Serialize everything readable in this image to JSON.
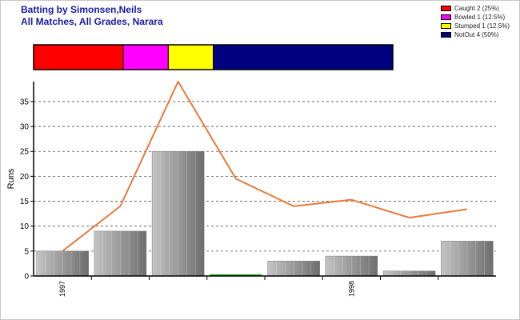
{
  "title_line1": "Batting by Simonsen,Neils",
  "title_line2": "All Matches, All Grades, Narara",
  "legend": [
    {
      "label": "Caught 2 (25%)",
      "color": "#ff0000",
      "share": 0.25
    },
    {
      "label": "Bowled 1 (12.5%)",
      "color": "#ff00ff",
      "share": 0.125
    },
    {
      "label": "Stumped 1 (12.5%)",
      "color": "#ffff00",
      "share": 0.125
    },
    {
      "label": "NotOut 4 (50%)",
      "color": "#000080",
      "share": 0.5
    }
  ],
  "chart_data": {
    "type": "bar",
    "ylabel": "Runs",
    "ylim": [
      0,
      39
    ],
    "yticks": [
      0,
      5,
      10,
      15,
      20,
      25,
      30,
      35
    ],
    "grid": true,
    "x_labels": [
      {
        "label": "1997",
        "index": 0
      },
      {
        "label": "1998",
        "index": 5
      }
    ],
    "bars": [
      5,
      9,
      25,
      0,
      3,
      4,
      1,
      7
    ],
    "line": [
      5,
      14,
      39,
      19.5,
      14,
      15.3,
      11.7,
      13.4
    ],
    "bar_color": "#a0a0a0",
    "zero_bar_color": "#00aa00",
    "line_color": "#e8793a"
  }
}
